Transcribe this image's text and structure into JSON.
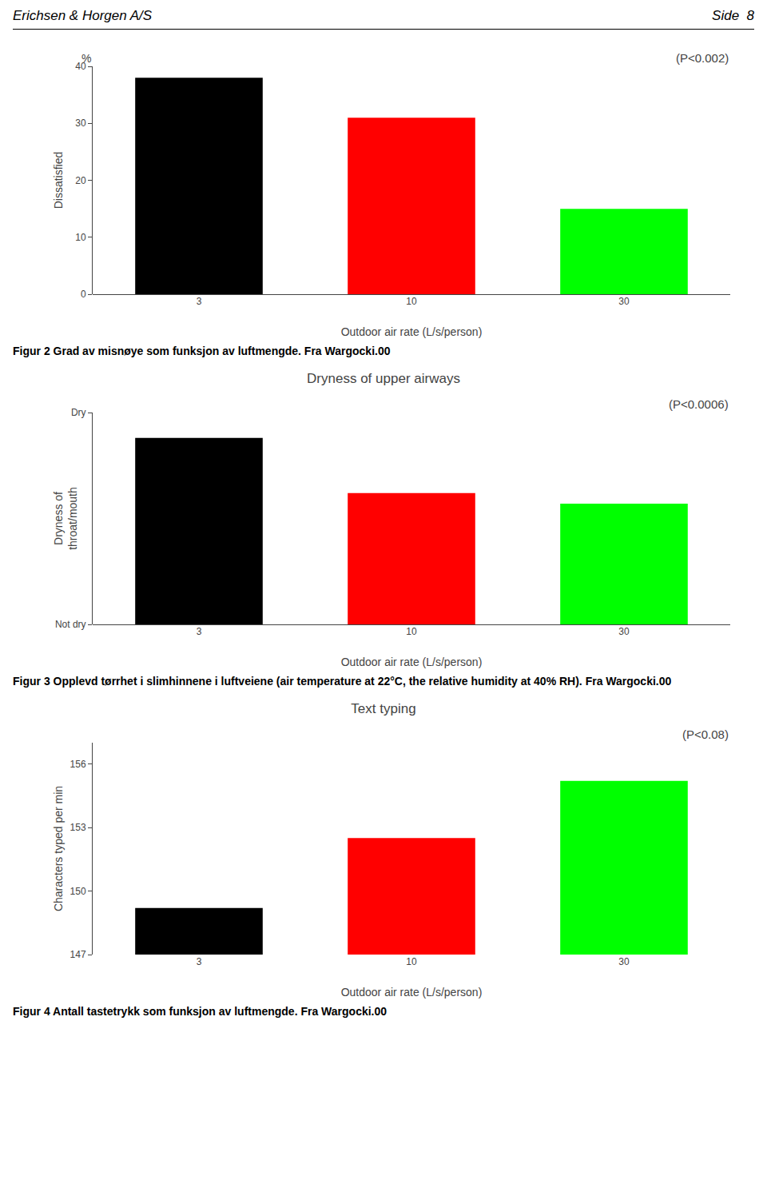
{
  "page_header": {
    "left": "Erichsen & Horgen A/S",
    "right": "Side  8"
  },
  "chart_data": [
    {
      "type": "bar",
      "ylabel": "Dissatisfied",
      "yunit": "%",
      "xlabel": "Outdoor air rate (L/s/person)",
      "categories": [
        "3",
        "10",
        "30"
      ],
      "values": [
        38,
        31,
        15
      ],
      "colors": [
        "#000000",
        "#ff0000",
        "#00ff00"
      ],
      "ylim": [
        0,
        40
      ],
      "yticks": [
        0,
        10,
        20,
        30,
        40
      ],
      "annotations": [
        "(P<0.002)"
      ],
      "grid": false,
      "caption": "Figur 2  Grad av misnøye som funksjon av luftmengde. Fra Wargocki.00"
    },
    {
      "type": "bar",
      "title": "Dryness of upper airways",
      "ylabel": "Dryness of\nthroat/mouth",
      "xlabel": "Outdoor air rate (L/s/person)",
      "categories": [
        "3",
        "10",
        "30"
      ],
      "values": [
        0.88,
        0.62,
        0.57
      ],
      "colors": [
        "#000000",
        "#ff0000",
        "#00ff00"
      ],
      "ylim": [
        0,
        1.0
      ],
      "yticks": [
        {
          "value": 0,
          "label": "Not dry"
        },
        {
          "value": 1.0,
          "label": "Dry"
        }
      ],
      "annotations": [
        "(P<0.0006)"
      ],
      "grid": false,
      "caption": "Figur 3 Opplevd tørrhet i slimhinnene i luftveiene (air temperature at 22°C, the relative humidity at 40% RH). Fra Wargocki.00"
    },
    {
      "type": "bar",
      "title": "Text typing",
      "ylabel": "Characters typed per min",
      "xlabel": "Outdoor air rate (L/s/person)",
      "categories": [
        "3",
        "10",
        "30"
      ],
      "values": [
        149.2,
        152.5,
        155.2
      ],
      "colors": [
        "#000000",
        "#ff0000",
        "#00ff00"
      ],
      "ylim": [
        147,
        157
      ],
      "yticks": [
        147,
        150,
        153,
        156
      ],
      "annotations": [
        "(P<0.08)"
      ],
      "grid": false,
      "caption": "Figur 4 Antall tastetrykk som funksjon av luftmengde. Fra Wargocki.00"
    }
  ]
}
